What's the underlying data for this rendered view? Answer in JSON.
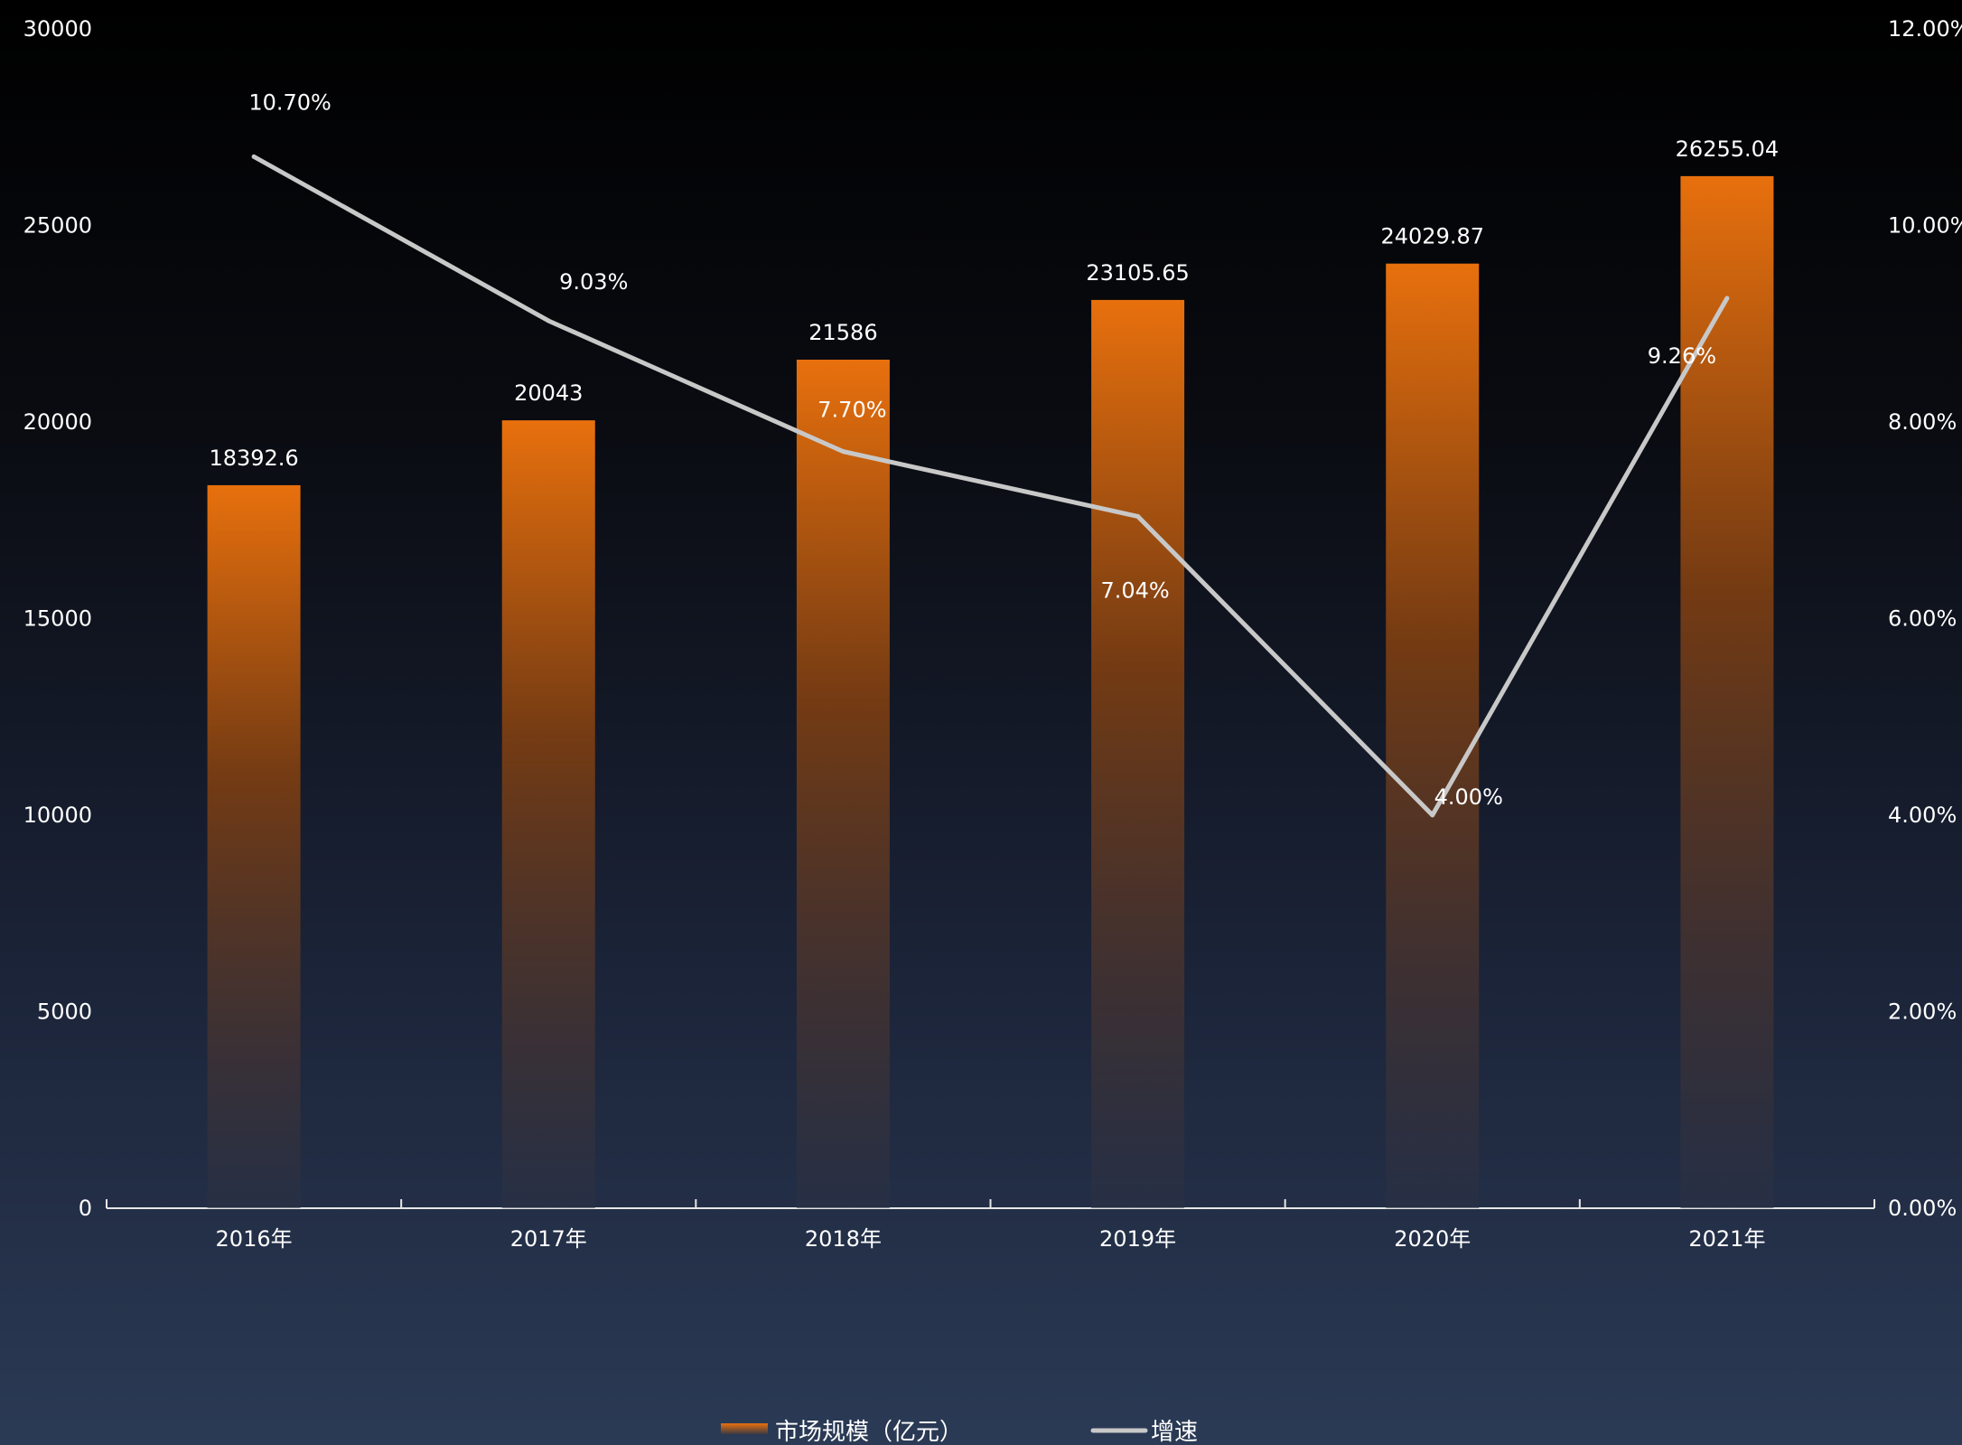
{
  "chart_data": {
    "type": "bar+line",
    "categories": [
      "2016年",
      "2017年",
      "2018年",
      "2019年",
      "2020年",
      "2021年"
    ],
    "series": [
      {
        "name": "市场规模（亿元）",
        "type": "bar",
        "axis": "left",
        "values": [
          18392.6,
          20043,
          21586,
          23105.65,
          24029.87,
          26255.04
        ],
        "labels": [
          "18392.6",
          "20043",
          "21586",
          "23105.65",
          "24029.87",
          "26255.04"
        ]
      },
      {
        "name": "增速",
        "type": "line",
        "axis": "right",
        "values": [
          10.7,
          9.03,
          7.7,
          7.04,
          4.0,
          9.26
        ],
        "labels": [
          "10.70%",
          "9.03%",
          "7.70%",
          "7.04%",
          "4.00%",
          "9.26%"
        ]
      }
    ],
    "left_axis": {
      "ylim": [
        0,
        30000
      ],
      "ticks": [
        "0",
        "5000",
        "10000",
        "15000",
        "20000",
        "25000",
        "30000"
      ]
    },
    "right_axis": {
      "ylim": [
        0,
        12
      ],
      "ticks": [
        "0.00%",
        "2.00%",
        "4.00%",
        "6.00%",
        "8.00%",
        "10.00%",
        "12.00%"
      ]
    },
    "grid": false,
    "legend_position": "bottom-center",
    "colors": {
      "bar_top": "#e8700d",
      "bar_bottom": "#2a3044",
      "line": "#c8c8c8",
      "text": "#ffffff"
    }
  }
}
